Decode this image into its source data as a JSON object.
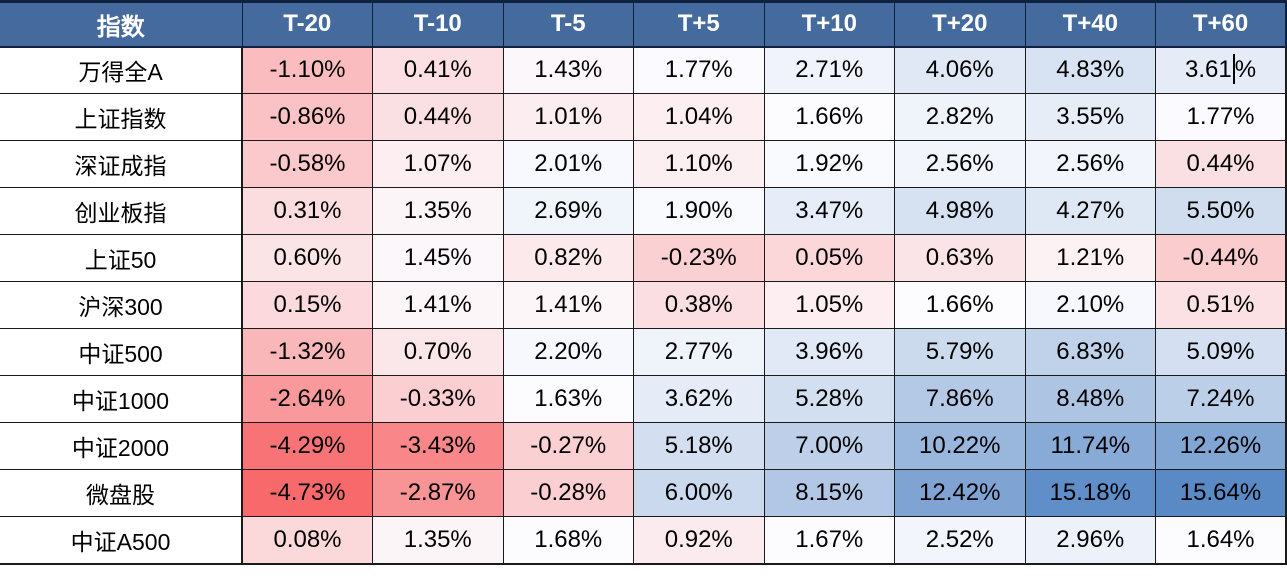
{
  "chart_data": {
    "type": "heatmap",
    "row_header_label": "指数",
    "columns": [
      "T-20",
      "T-10",
      "T-5",
      "T+5",
      "T+10",
      "T+20",
      "T+40",
      "T+60"
    ],
    "rows": [
      "万得全A",
      "上证指数",
      "深证成指",
      "创业板指",
      "上证50",
      "沪深300",
      "中证500",
      "中证1000",
      "中证2000",
      "微盘股",
      "中证A500"
    ],
    "values": [
      [
        -1.1,
        0.41,
        1.43,
        1.77,
        2.71,
        4.06,
        4.83,
        3.61
      ],
      [
        -0.86,
        0.44,
        1.01,
        1.04,
        1.66,
        2.82,
        3.55,
        1.77
      ],
      [
        -0.58,
        1.07,
        2.01,
        1.1,
        1.92,
        2.56,
        2.56,
        0.44
      ],
      [
        0.31,
        1.35,
        2.69,
        1.9,
        3.47,
        4.98,
        4.27,
        5.5
      ],
      [
        0.6,
        1.45,
        0.82,
        -0.23,
        0.05,
        0.63,
        1.21,
        -0.44
      ],
      [
        0.15,
        1.41,
        1.41,
        0.38,
        1.05,
        1.66,
        2.1,
        0.51
      ],
      [
        -1.32,
        0.7,
        2.2,
        2.77,
        3.96,
        5.79,
        6.83,
        5.09
      ],
      [
        -2.64,
        -0.33,
        1.63,
        3.62,
        5.28,
        7.86,
        8.48,
        7.24
      ],
      [
        -4.29,
        -3.43,
        -0.27,
        5.18,
        7.0,
        10.22,
        11.74,
        12.26
      ],
      [
        -4.73,
        -2.87,
        -0.28,
        6.0,
        8.15,
        12.42,
        15.18,
        15.64
      ],
      [
        0.08,
        1.35,
        1.68,
        0.92,
        1.67,
        2.52,
        2.96,
        1.64
      ]
    ],
    "value_suffix": "%",
    "value_decimals": 2,
    "color_scale": {
      "type": "3-color",
      "min_value": -4.73,
      "mid_value": 1.665,
      "max_value": 15.64,
      "min_color": "#F8696B",
      "mid_color": "#FCFCFF",
      "max_color": "#5A8AC6"
    },
    "legend_position": "none",
    "grid": true
  },
  "colors": {
    "header_bg": "#456A9D",
    "header_text": "#FFFFFF",
    "cell_text": "#000000",
    "row_label_bg": "#FFFFFF",
    "grid_line": "#1A1A1A",
    "outer_border": "#0E2240"
  },
  "ui": {
    "text_cursor_cell": {
      "row_index": 0,
      "col_index": 7
    }
  }
}
